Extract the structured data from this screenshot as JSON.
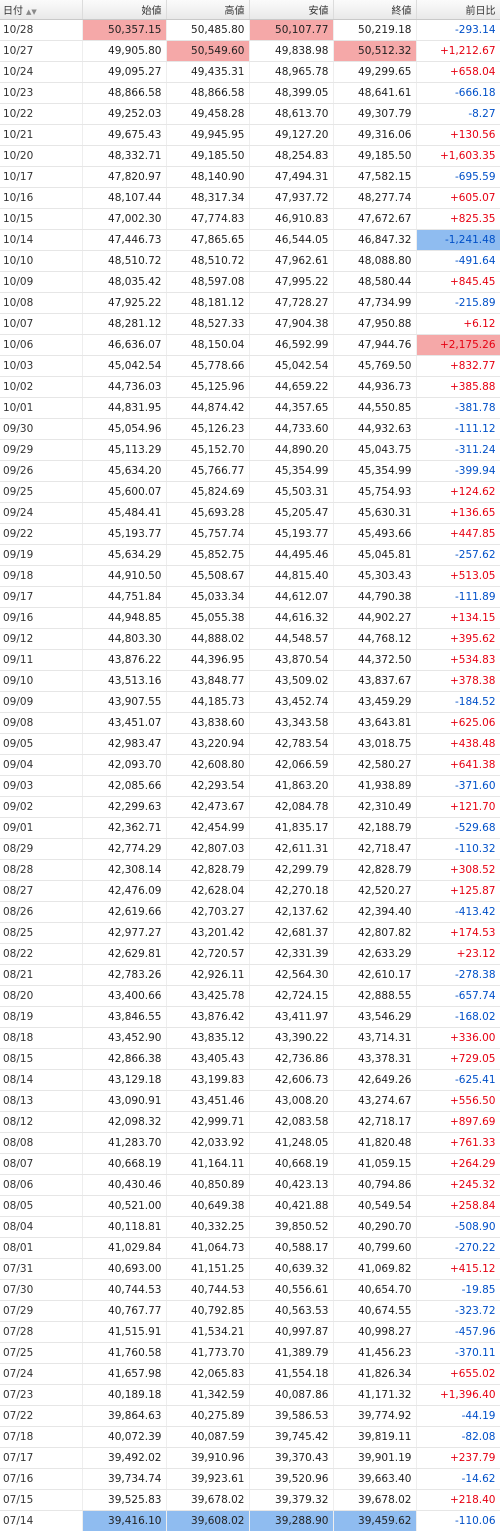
{
  "header": {
    "date": "日付",
    "open": "始値",
    "high": "高値",
    "low": "安値",
    "close": "終値",
    "change": "前日比",
    "sort_icon": "▲▼"
  },
  "highlight_colors": {
    "red": "#f5a8a8",
    "blue": "#8fbcf0"
  },
  "rows": [
    {
      "date": "10/28",
      "open": "50,357.15",
      "high": "50,485.80",
      "low": "50,107.77",
      "close": "50,219.18",
      "change": "-293.14",
      "hl": {
        "open": "red",
        "low": "red"
      }
    },
    {
      "date": "10/27",
      "open": "49,905.80",
      "high": "50,549.60",
      "low": "49,838.98",
      "close": "50,512.32",
      "change": "+1,212.67",
      "hl": {
        "high": "red",
        "close": "red"
      }
    },
    {
      "date": "10/24",
      "open": "49,095.27",
      "high": "49,435.31",
      "low": "48,965.78",
      "close": "49,299.65",
      "change": "+658.04"
    },
    {
      "date": "10/23",
      "open": "48,866.58",
      "high": "48,866.58",
      "low": "48,399.05",
      "close": "48,641.61",
      "change": "-666.18"
    },
    {
      "date": "10/22",
      "open": "49,252.03",
      "high": "49,458.28",
      "low": "48,613.70",
      "close": "49,307.79",
      "change": "-8.27"
    },
    {
      "date": "10/21",
      "open": "49,675.43",
      "high": "49,945.95",
      "low": "49,127.20",
      "close": "49,316.06",
      "change": "+130.56"
    },
    {
      "date": "10/20",
      "open": "48,332.71",
      "high": "49,185.50",
      "low": "48,254.83",
      "close": "49,185.50",
      "change": "+1,603.35"
    },
    {
      "date": "10/17",
      "open": "47,820.97",
      "high": "48,140.90",
      "low": "47,494.31",
      "close": "47,582.15",
      "change": "-695.59"
    },
    {
      "date": "10/16",
      "open": "48,107.44",
      "high": "48,317.34",
      "low": "47,937.72",
      "close": "48,277.74",
      "change": "+605.07"
    },
    {
      "date": "10/15",
      "open": "47,002.30",
      "high": "47,774.83",
      "low": "46,910.83",
      "close": "47,672.67",
      "change": "+825.35"
    },
    {
      "date": "10/14",
      "open": "47,446.73",
      "high": "47,865.65",
      "low": "46,544.05",
      "close": "46,847.32",
      "change": "-1,241.48",
      "hl": {
        "change": "blue"
      }
    },
    {
      "date": "10/10",
      "open": "48,510.72",
      "high": "48,510.72",
      "low": "47,962.61",
      "close": "48,088.80",
      "change": "-491.64"
    },
    {
      "date": "10/09",
      "open": "48,035.42",
      "high": "48,597.08",
      "low": "47,995.22",
      "close": "48,580.44",
      "change": "+845.45"
    },
    {
      "date": "10/08",
      "open": "47,925.22",
      "high": "48,181.12",
      "low": "47,728.27",
      "close": "47,734.99",
      "change": "-215.89"
    },
    {
      "date": "10/07",
      "open": "48,281.12",
      "high": "48,527.33",
      "low": "47,904.38",
      "close": "47,950.88",
      "change": "+6.12"
    },
    {
      "date": "10/06",
      "open": "46,636.07",
      "high": "48,150.04",
      "low": "46,592.99",
      "close": "47,944.76",
      "change": "+2,175.26",
      "hl": {
        "change": "red"
      }
    },
    {
      "date": "10/03",
      "open": "45,042.54",
      "high": "45,778.66",
      "low": "45,042.54",
      "close": "45,769.50",
      "change": "+832.77"
    },
    {
      "date": "10/02",
      "open": "44,736.03",
      "high": "45,125.96",
      "low": "44,659.22",
      "close": "44,936.73",
      "change": "+385.88"
    },
    {
      "date": "10/01",
      "open": "44,831.95",
      "high": "44,874.42",
      "low": "44,357.65",
      "close": "44,550.85",
      "change": "-381.78"
    },
    {
      "date": "09/30",
      "open": "45,054.96",
      "high": "45,126.23",
      "low": "44,733.60",
      "close": "44,932.63",
      "change": "-111.12"
    },
    {
      "date": "09/29",
      "open": "45,113.29",
      "high": "45,152.70",
      "low": "44,890.20",
      "close": "45,043.75",
      "change": "-311.24"
    },
    {
      "date": "09/26",
      "open": "45,634.20",
      "high": "45,766.77",
      "low": "45,354.99",
      "close": "45,354.99",
      "change": "-399.94"
    },
    {
      "date": "09/25",
      "open": "45,600.07",
      "high": "45,824.69",
      "low": "45,503.31",
      "close": "45,754.93",
      "change": "+124.62"
    },
    {
      "date": "09/24",
      "open": "45,484.41",
      "high": "45,693.28",
      "low": "45,205.47",
      "close": "45,630.31",
      "change": "+136.65"
    },
    {
      "date": "09/22",
      "open": "45,193.77",
      "high": "45,757.74",
      "low": "45,193.77",
      "close": "45,493.66",
      "change": "+447.85"
    },
    {
      "date": "09/19",
      "open": "45,634.29",
      "high": "45,852.75",
      "low": "44,495.46",
      "close": "45,045.81",
      "change": "-257.62"
    },
    {
      "date": "09/18",
      "open": "44,910.50",
      "high": "45,508.67",
      "low": "44,815.40",
      "close": "45,303.43",
      "change": "+513.05"
    },
    {
      "date": "09/17",
      "open": "44,751.84",
      "high": "45,033.34",
      "low": "44,612.07",
      "close": "44,790.38",
      "change": "-111.89"
    },
    {
      "date": "09/16",
      "open": "44,948.85",
      "high": "45,055.38",
      "low": "44,616.32",
      "close": "44,902.27",
      "change": "+134.15"
    },
    {
      "date": "09/12",
      "open": "44,803.30",
      "high": "44,888.02",
      "low": "44,548.57",
      "close": "44,768.12",
      "change": "+395.62"
    },
    {
      "date": "09/11",
      "open": "43,876.22",
      "high": "44,396.95",
      "low": "43,870.54",
      "close": "44,372.50",
      "change": "+534.83"
    },
    {
      "date": "09/10",
      "open": "43,513.16",
      "high": "43,848.77",
      "low": "43,509.02",
      "close": "43,837.67",
      "change": "+378.38"
    },
    {
      "date": "09/09",
      "open": "43,907.55",
      "high": "44,185.73",
      "low": "43,452.74",
      "close": "43,459.29",
      "change": "-184.52"
    },
    {
      "date": "09/08",
      "open": "43,451.07",
      "high": "43,838.60",
      "low": "43,343.58",
      "close": "43,643.81",
      "change": "+625.06"
    },
    {
      "date": "09/05",
      "open": "42,983.47",
      "high": "43,220.94",
      "low": "42,783.54",
      "close": "43,018.75",
      "change": "+438.48"
    },
    {
      "date": "09/04",
      "open": "42,093.70",
      "high": "42,608.80",
      "low": "42,066.59",
      "close": "42,580.27",
      "change": "+641.38"
    },
    {
      "date": "09/03",
      "open": "42,085.66",
      "high": "42,293.54",
      "low": "41,863.20",
      "close": "41,938.89",
      "change": "-371.60"
    },
    {
      "date": "09/02",
      "open": "42,299.63",
      "high": "42,473.67",
      "low": "42,084.78",
      "close": "42,310.49",
      "change": "+121.70"
    },
    {
      "date": "09/01",
      "open": "42,362.71",
      "high": "42,454.99",
      "low": "41,835.17",
      "close": "42,188.79",
      "change": "-529.68"
    },
    {
      "date": "08/29",
      "open": "42,774.29",
      "high": "42,807.03",
      "low": "42,611.31",
      "close": "42,718.47",
      "change": "-110.32"
    },
    {
      "date": "08/28",
      "open": "42,308.14",
      "high": "42,828.79",
      "low": "42,299.79",
      "close": "42,828.79",
      "change": "+308.52"
    },
    {
      "date": "08/27",
      "open": "42,476.09",
      "high": "42,628.04",
      "low": "42,270.18",
      "close": "42,520.27",
      "change": "+125.87"
    },
    {
      "date": "08/26",
      "open": "42,619.66",
      "high": "42,703.27",
      "low": "42,137.62",
      "close": "42,394.40",
      "change": "-413.42"
    },
    {
      "date": "08/25",
      "open": "42,977.27",
      "high": "43,201.42",
      "low": "42,681.37",
      "close": "42,807.82",
      "change": "+174.53"
    },
    {
      "date": "08/22",
      "open": "42,629.81",
      "high": "42,720.57",
      "low": "42,331.39",
      "close": "42,633.29",
      "change": "+23.12"
    },
    {
      "date": "08/21",
      "open": "42,783.26",
      "high": "42,926.11",
      "low": "42,564.30",
      "close": "42,610.17",
      "change": "-278.38"
    },
    {
      "date": "08/20",
      "open": "43,400.66",
      "high": "43,425.78",
      "low": "42,724.15",
      "close": "42,888.55",
      "change": "-657.74"
    },
    {
      "date": "08/19",
      "open": "43,846.55",
      "high": "43,876.42",
      "low": "43,411.97",
      "close": "43,546.29",
      "change": "-168.02"
    },
    {
      "date": "08/18",
      "open": "43,452.90",
      "high": "43,835.12",
      "low": "43,390.22",
      "close": "43,714.31",
      "change": "+336.00"
    },
    {
      "date": "08/15",
      "open": "42,866.38",
      "high": "43,405.43",
      "low": "42,736.86",
      "close": "43,378.31",
      "change": "+729.05"
    },
    {
      "date": "08/14",
      "open": "43,129.18",
      "high": "43,199.83",
      "low": "42,606.73",
      "close": "42,649.26",
      "change": "-625.41"
    },
    {
      "date": "08/13",
      "open": "43,090.91",
      "high": "43,451.46",
      "low": "43,008.20",
      "close": "43,274.67",
      "change": "+556.50"
    },
    {
      "date": "08/12",
      "open": "42,098.32",
      "high": "42,999.71",
      "low": "42,083.58",
      "close": "42,718.17",
      "change": "+897.69"
    },
    {
      "date": "08/08",
      "open": "41,283.70",
      "high": "42,033.92",
      "low": "41,248.05",
      "close": "41,820.48",
      "change": "+761.33"
    },
    {
      "date": "08/07",
      "open": "40,668.19",
      "high": "41,164.11",
      "low": "40,668.19",
      "close": "41,059.15",
      "change": "+264.29"
    },
    {
      "date": "08/06",
      "open": "40,430.46",
      "high": "40,850.89",
      "low": "40,423.13",
      "close": "40,794.86",
      "change": "+245.32"
    },
    {
      "date": "08/05",
      "open": "40,521.00",
      "high": "40,649.38",
      "low": "40,421.88",
      "close": "40,549.54",
      "change": "+258.84"
    },
    {
      "date": "08/04",
      "open": "40,118.81",
      "high": "40,332.25",
      "low": "39,850.52",
      "close": "40,290.70",
      "change": "-508.90"
    },
    {
      "date": "08/01",
      "open": "41,029.84",
      "high": "41,064.73",
      "low": "40,588.17",
      "close": "40,799.60",
      "change": "-270.22"
    },
    {
      "date": "07/31",
      "open": "40,693.00",
      "high": "41,151.25",
      "low": "40,639.32",
      "close": "41,069.82",
      "change": "+415.12"
    },
    {
      "date": "07/30",
      "open": "40,744.53",
      "high": "40,744.53",
      "low": "40,556.61",
      "close": "40,654.70",
      "change": "-19.85"
    },
    {
      "date": "07/29",
      "open": "40,767.77",
      "high": "40,792.85",
      "low": "40,563.53",
      "close": "40,674.55",
      "change": "-323.72"
    },
    {
      "date": "07/28",
      "open": "41,515.91",
      "high": "41,534.21",
      "low": "40,997.87",
      "close": "40,998.27",
      "change": "-457.96"
    },
    {
      "date": "07/25",
      "open": "41,760.58",
      "high": "41,773.70",
      "low": "41,389.79",
      "close": "41,456.23",
      "change": "-370.11"
    },
    {
      "date": "07/24",
      "open": "41,657.98",
      "high": "42,065.83",
      "low": "41,554.18",
      "close": "41,826.34",
      "change": "+655.02"
    },
    {
      "date": "07/23",
      "open": "40,189.18",
      "high": "41,342.59",
      "low": "40,087.86",
      "close": "41,171.32",
      "change": "+1,396.40"
    },
    {
      "date": "07/22",
      "open": "39,864.63",
      "high": "40,275.89",
      "low": "39,586.53",
      "close": "39,774.92",
      "change": "-44.19"
    },
    {
      "date": "07/18",
      "open": "40,072.39",
      "high": "40,087.59",
      "low": "39,745.42",
      "close": "39,819.11",
      "change": "-82.08"
    },
    {
      "date": "07/17",
      "open": "39,492.02",
      "high": "39,910.96",
      "low": "39,370.43",
      "close": "39,901.19",
      "change": "+237.79"
    },
    {
      "date": "07/16",
      "open": "39,734.74",
      "high": "39,923.61",
      "low": "39,520.96",
      "close": "39,663.40",
      "change": "-14.62"
    },
    {
      "date": "07/15",
      "open": "39,525.83",
      "high": "39,678.02",
      "low": "39,379.32",
      "close": "39,678.02",
      "change": "+218.40"
    },
    {
      "date": "07/14",
      "open": "39,416.10",
      "high": "39,608.02",
      "low": "39,288.90",
      "close": "39,459.62",
      "change": "-110.06",
      "hl": {
        "open": "blue",
        "high": "blue",
        "low": "blue",
        "close": "blue"
      }
    }
  ]
}
